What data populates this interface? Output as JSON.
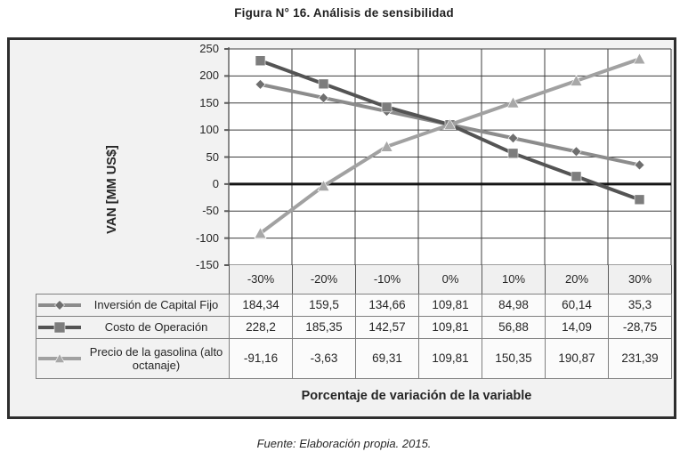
{
  "figure": {
    "title": "Figura N° 16. Análisis de sensibilidad",
    "source": "Fuente: Elaboración propia. 2015."
  },
  "chart_data": {
    "type": "line",
    "title": "Figura N° 16. Análisis de sensibilidad",
    "categories": [
      "-30%",
      "-20%",
      "-10%",
      "0%",
      "10%",
      "20%",
      "30%"
    ],
    "series": [
      {
        "name": "Inversión de Capital Fijo",
        "marker": "diamond",
        "line_color": "#8c8c8c",
        "marker_color": "#6e6e6e",
        "values": [
          184.34,
          159.5,
          134.66,
          109.81,
          84.98,
          60.14,
          35.3
        ],
        "display_values": [
          "184,34",
          "159,5",
          "134,66",
          "109,81",
          "84,98",
          "60,14",
          "35,3"
        ]
      },
      {
        "name": "Costo de Operación",
        "marker": "square",
        "line_color": "#545454",
        "marker_color": "#7d7d7d",
        "values": [
          228.2,
          185.35,
          142.57,
          109.81,
          56.88,
          14.09,
          -28.75
        ],
        "display_values": [
          "228,2",
          "185,35",
          "142,57",
          "109,81",
          "56,88",
          "14,09",
          "-28,75"
        ]
      },
      {
        "name": "Precio de la gasolina (alto octanaje)",
        "marker": "triangle",
        "line_color": "#a1a1a1",
        "marker_color": "#a8a8a8",
        "values": [
          -91.16,
          -3.63,
          69.31,
          109.81,
          150.35,
          190.87,
          231.39
        ],
        "display_values": [
          "-91,16",
          "-3,63",
          "69,31",
          "109,81",
          "150,35",
          "190,87",
          "231,39"
        ]
      }
    ],
    "xlabel": "Porcentaje de variación de la variable",
    "ylabel": "VAN [MM US$]",
    "ylim": [
      -150,
      250
    ],
    "ytick_step": 50,
    "grid": true,
    "zero_line": true,
    "legend_position": "table-left"
  },
  "colors": {
    "frame_border": "#2e2e2e",
    "frame_bg": "#f2f2f2",
    "plot_bg": "#ffffff",
    "gridline": "#3d3d3d",
    "zero_line": "#141414",
    "axis_line": "#8a8a8a",
    "axis_tick": "#5a5a5a",
    "table_border": "#808080",
    "text": "#262626"
  }
}
